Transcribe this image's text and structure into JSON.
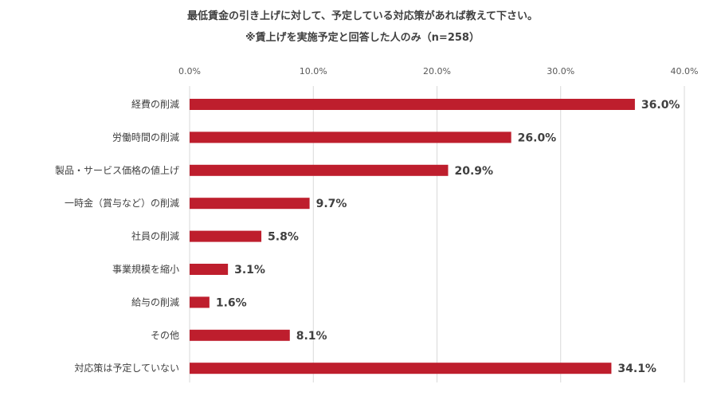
{
  "chart_data": {
    "type": "bar",
    "orientation": "horizontal",
    "title": "最低賃金の引き上げに対して、予定している対応策があれば教えて下さい。",
    "subtitle": "※賃上げを実施予定と回答した人のみ（n=258）",
    "categories": [
      "経費の削減",
      "労働時間の削減",
      "製品・サービス価格の値上げ",
      "一時金（賞与など）の削減",
      "社員の削減",
      "事業規模を縮小",
      "給与の削減",
      "その他",
      "対応策は予定していない"
    ],
    "values": [
      36.0,
      26.0,
      20.9,
      9.7,
      5.8,
      3.1,
      1.6,
      8.1,
      34.1
    ],
    "value_labels": [
      "36.0%",
      "26.0%",
      "20.9%",
      "9.7%",
      "5.8%",
      "3.1%",
      "1.6%",
      "8.1%",
      "34.1%"
    ],
    "xlim": [
      0,
      40
    ],
    "x_ticks": [
      0,
      10,
      20,
      30,
      40
    ],
    "x_tick_labels": [
      "0.0%",
      "10.0%",
      "20.0%",
      "30.0%",
      "40.0%"
    ],
    "x_axis_position": "top",
    "grid": true,
    "legend": false,
    "bar_color": "#BE1E2D",
    "grid_color": "#D9D9D9"
  }
}
